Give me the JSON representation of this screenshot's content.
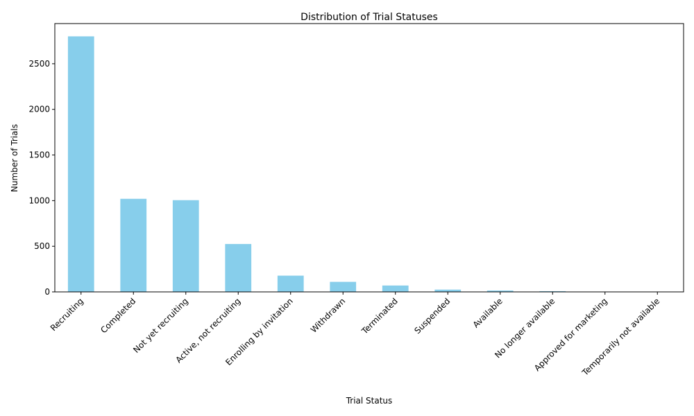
{
  "chart_data": {
    "type": "bar",
    "title": "Distribution of Trial Statuses",
    "xlabel": "Trial Status",
    "ylabel": "Number of Trials",
    "categories": [
      "Recruiting",
      "Completed",
      "Not yet recruiting",
      "Active, not recruiting",
      "Enrolling by invitation",
      "Withdrawn",
      "Terminated",
      "Suspended",
      "Available",
      "No longer available",
      "Approved for marketing",
      "Temporarily not available"
    ],
    "values": [
      2800,
      1020,
      1005,
      525,
      178,
      110,
      70,
      25,
      15,
      8,
      2,
      1
    ],
    "ylim": [
      0,
      2940
    ],
    "yticks": [
      0,
      500,
      1000,
      1500,
      2000,
      2500
    ],
    "grid": false,
    "bar_color": "#87ceeb"
  }
}
